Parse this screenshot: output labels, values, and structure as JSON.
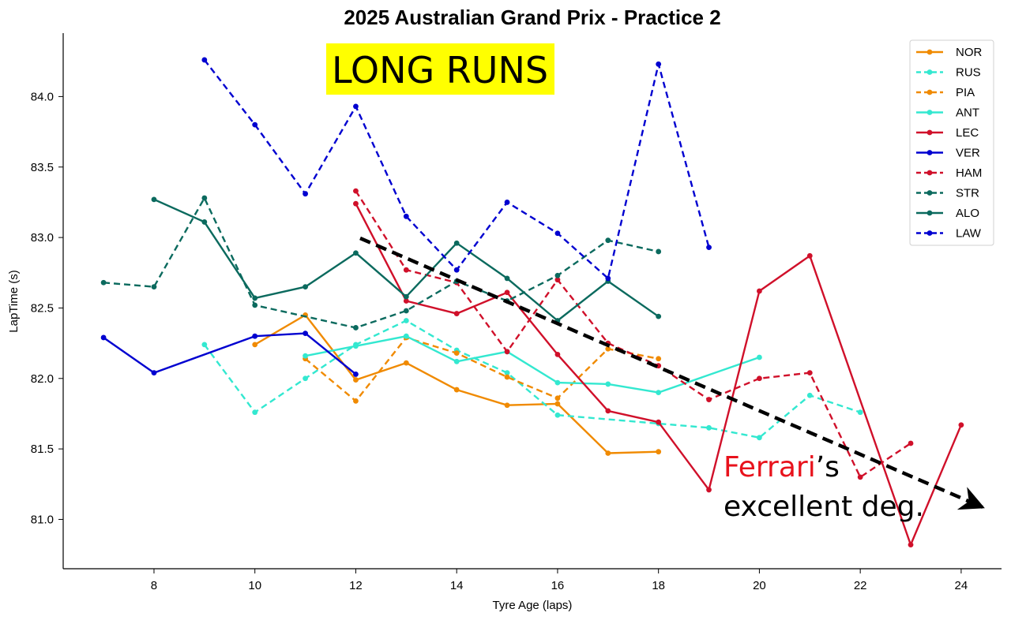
{
  "chart_data": {
    "type": "line",
    "title": "2025 Australian Grand Prix - Practice 2",
    "xlabel": "Tyre Age (laps)",
    "ylabel": "LapTime (s)",
    "xlim": [
      6.2,
      24.8
    ],
    "ylim": [
      80.65,
      84.45
    ],
    "xticks": [
      8,
      10,
      12,
      14,
      16,
      18,
      20,
      22,
      24
    ],
    "yticks": [
      "81.0",
      "81.5",
      "82.0",
      "82.5",
      "83.0",
      "83.5",
      "84.0"
    ],
    "grid": false,
    "legend_position": "top-right",
    "series": [
      {
        "name": "NOR",
        "color": "#f08a00",
        "dashed": false,
        "x": [
          10,
          11,
          12,
          13,
          14,
          15,
          16,
          17,
          18
        ],
        "y": [
          82.24,
          82.45,
          81.99,
          82.11,
          81.92,
          81.81,
          81.82,
          81.47,
          81.48
        ]
      },
      {
        "name": "RUS",
        "color": "#33e8d0",
        "dashed": true,
        "x": [
          9,
          10,
          11,
          12,
          13,
          14,
          15,
          16,
          18,
          19,
          20,
          21,
          22
        ],
        "y": [
          82.24,
          81.76,
          82.0,
          82.24,
          82.41,
          82.2,
          82.04,
          81.74,
          81.68,
          81.65,
          81.58,
          81.88,
          81.76
        ]
      },
      {
        "name": "PIA",
        "color": "#f08a00",
        "dashed": true,
        "x": [
          11,
          12,
          13,
          14,
          15,
          16,
          17,
          18
        ],
        "y": [
          82.14,
          81.84,
          82.29,
          82.18,
          82.01,
          81.86,
          82.21,
          82.14
        ]
      },
      {
        "name": "ANT",
        "color": "#33e8d0",
        "dashed": false,
        "x": [
          11,
          12,
          13,
          14,
          15,
          16,
          17,
          18,
          20
        ],
        "y": [
          82.16,
          82.23,
          82.3,
          82.12,
          82.19,
          81.97,
          81.96,
          81.9,
          82.15
        ]
      },
      {
        "name": "LEC",
        "color": "#d0102a",
        "dashed": false,
        "x": [
          12,
          13,
          14,
          15,
          16,
          17,
          18,
          19,
          20,
          21,
          23,
          24
        ],
        "y": [
          83.24,
          82.55,
          82.46,
          82.61,
          82.17,
          81.77,
          81.69,
          81.21,
          82.62,
          82.87,
          80.82,
          81.67
        ]
      },
      {
        "name": "VER",
        "color": "#0000d0",
        "dashed": false,
        "x": [
          7,
          8,
          10,
          11,
          12
        ],
        "y": [
          82.29,
          82.04,
          82.3,
          82.32,
          82.03
        ]
      },
      {
        "name": "HAM",
        "color": "#d0102a",
        "dashed": true,
        "x": [
          12,
          13,
          14,
          15,
          16,
          17,
          18,
          19,
          20,
          21,
          22,
          23
        ],
        "y": [
          83.33,
          82.77,
          82.68,
          82.19,
          82.7,
          82.25,
          82.09,
          81.85,
          82.0,
          82.04,
          81.3,
          81.54
        ]
      },
      {
        "name": "STR",
        "color": "#0b6a5e",
        "dashed": true,
        "x": [
          7,
          8,
          9,
          10,
          12,
          13,
          14,
          15,
          16,
          17,
          18
        ],
        "y": [
          82.68,
          82.65,
          83.28,
          82.52,
          82.36,
          82.48,
          82.69,
          82.55,
          82.73,
          82.98,
          82.9
        ]
      },
      {
        "name": "ALO",
        "color": "#0b6a5e",
        "dashed": false,
        "x": [
          8,
          9,
          10,
          11,
          12,
          13,
          14,
          15,
          16,
          17,
          18
        ],
        "y": [
          83.27,
          83.11,
          82.57,
          82.65,
          82.89,
          82.58,
          82.96,
          82.71,
          82.41,
          82.69,
          82.44
        ]
      },
      {
        "name": "LAW",
        "color": "#0000d0",
        "dashed": true,
        "x": [
          9,
          10,
          11,
          12,
          13,
          14,
          15,
          16,
          17,
          18,
          19
        ],
        "y": [
          84.26,
          83.8,
          83.31,
          83.93,
          83.15,
          82.77,
          83.25,
          83.03,
          82.71,
          84.23,
          82.93
        ]
      }
    ],
    "annotations": {
      "banner": "LONG RUNS",
      "note_highlight": "Ferrari",
      "note_rest_line1": "’s",
      "note_line2": "excellent deg.",
      "highlight_color": "#ffff00",
      "note_highlight_color": "#e8121c"
    }
  }
}
